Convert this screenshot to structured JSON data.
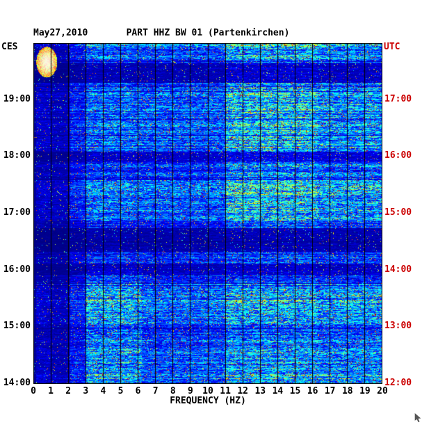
{
  "header": {
    "date": "May27,2010",
    "title": "PART HHZ BW 01 (Partenkirchen)",
    "left_axis_label": "CES",
    "right_axis_label": "UTC"
  },
  "axes": {
    "x": {
      "label": "FREQUENCY (HZ)",
      "min": 0,
      "max": 20,
      "tick_labels": [
        "0",
        "1",
        "2",
        "3",
        "4",
        "5",
        "6",
        "7",
        "8",
        "9",
        "10",
        "11",
        "12",
        "13",
        "14",
        "15",
        "16",
        "17",
        "18",
        "19",
        "20"
      ]
    },
    "y_left": {
      "timezone": "CES",
      "tick_labels": [
        "19:00",
        "18:00",
        "17:00",
        "16:00",
        "15:00",
        "14:00"
      ]
    },
    "y_right": {
      "timezone": "UTC",
      "tick_labels": [
        "17:00",
        "16:00",
        "15:00",
        "14:00",
        "13:00",
        "12:00"
      ],
      "color": "#cc0000"
    }
  },
  "colors": {
    "background": "#ffffff",
    "text": "#000000",
    "utc_red": "#cc0000",
    "grid": "#000000"
  },
  "chart_data": {
    "type": "heatmap",
    "title": "PART HHZ BW 01 (Partenkirchen)",
    "date": "May27,2010",
    "xlabel": "FREQUENCY (HZ)",
    "x_range_hz": [
      0,
      20
    ],
    "time_axis": {
      "left_zone": "CES",
      "right_zone": "UTC",
      "top_ces": "20:00",
      "bottom_ces": "14:00",
      "top_utc": "18:00",
      "bottom_utc": "12:00",
      "left_tick_labels": [
        "19:00",
        "18:00",
        "17:00",
        "16:00",
        "15:00",
        "14:00"
      ],
      "right_tick_labels": [
        "17:00",
        "16:00",
        "15:00",
        "14:00",
        "13:00",
        "12:00"
      ]
    },
    "colormap": "jet",
    "seed": 20100527,
    "intensity_scale": 0.58,
    "freq_profile": [
      {
        "from": 0.0,
        "to": 0.15,
        "factor": 0.06
      },
      {
        "from": 0.15,
        "to": 1.0,
        "factor": 0.17
      },
      {
        "from": 1.0,
        "to": 2.1,
        "factor": 0.14
      },
      {
        "from": 2.1,
        "to": 3.0,
        "factor": 0.32
      },
      {
        "from": 3.0,
        "to": 5.6,
        "factor": 0.5
      },
      {
        "from": 5.6,
        "to": 11.0,
        "factor": 0.46
      },
      {
        "from": 11.0,
        "to": 16.3,
        "factor": 0.58
      },
      {
        "from": 16.3,
        "to": 20.01,
        "factor": 0.52
      }
    ],
    "time_bands": [
      {
        "from": 0.0,
        "to": 0.018,
        "level": 1.15
      },
      {
        "from": 0.018,
        "to": 0.058,
        "level": 0.95
      },
      {
        "from": 0.058,
        "to": 0.115,
        "level": 0.26
      },
      {
        "from": 0.115,
        "to": 0.318,
        "level": 1.02
      },
      {
        "from": 0.318,
        "to": 0.347,
        "level": 0.35
      },
      {
        "from": 0.347,
        "to": 0.4,
        "level": 0.85
      },
      {
        "from": 0.4,
        "to": 0.52,
        "level": 1.1
      },
      {
        "from": 0.52,
        "to": 0.542,
        "level": 0.7
      },
      {
        "from": 0.542,
        "to": 0.612,
        "level": 0.22
      },
      {
        "from": 0.612,
        "to": 0.645,
        "level": 0.8
      },
      {
        "from": 0.645,
        "to": 0.68,
        "level": 0.3
      },
      {
        "from": 0.68,
        "to": 0.705,
        "level": 0.75
      },
      {
        "from": 0.705,
        "to": 0.83,
        "level": 1.08
      },
      {
        "from": 0.83,
        "to": 0.868,
        "level": 0.78
      },
      {
        "from": 0.868,
        "to": 1.0,
        "level": 1.0
      }
    ],
    "hot_regions": [
      {
        "f": [
          11.0,
          16.3
        ],
        "t": [
          0.0,
          0.55
        ],
        "boost": 0.14
      },
      {
        "f": [
          16.3,
          20.0
        ],
        "t": [
          0.0,
          0.55
        ],
        "boost": 0.07
      },
      {
        "f": [
          3.0,
          6.2
        ],
        "t": [
          0.66,
          1.0
        ],
        "boost": 0.14
      },
      {
        "f": [
          11.0,
          20.0
        ],
        "t": [
          0.7,
          1.0
        ],
        "boost": 0.06
      }
    ],
    "low_freq_blob": {
      "f_hz": [
        0.15,
        1.35
      ],
      "t_frac": [
        0.01,
        0.1
      ]
    },
    "grid_lines_hz": [
      1,
      2,
      3,
      4,
      5,
      6,
      7,
      8,
      9,
      10,
      11,
      12,
      13,
      14,
      15,
      16,
      17,
      18,
      19
    ]
  }
}
